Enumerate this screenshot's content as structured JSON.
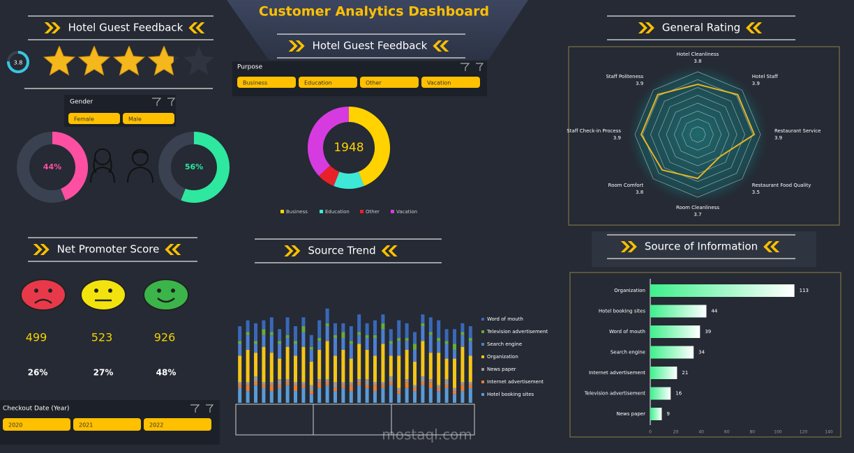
{
  "header": {
    "title": "Customer Analytics Dashboard"
  },
  "panels": {
    "feedback_left": "Hotel Guest Feedback",
    "feedback_center": "Hotel Guest Feedback",
    "general_rating": "General Rating",
    "nps": "Net Promoter Score",
    "source_trend": "Source Trend",
    "source_info": "Source of Information"
  },
  "rating": {
    "value": 3.8,
    "max": 5
  },
  "slicers": [
    {
      "title": "Gender",
      "options": [
        "Female",
        "Male"
      ]
    },
    {
      "title": "Purpose",
      "options": [
        "Business",
        "Education",
        "Other",
        "Vacation"
      ]
    },
    {
      "title": "Checkout Date (Year)",
      "options": [
        "2020",
        "2021",
        "2022"
      ]
    }
  ],
  "chart_data": [
    {
      "type": "gauge",
      "values": [
        44,
        56
      ],
      "value_labels": [
        "44%",
        "56%"
      ],
      "colors": [
        "#ff4fa3",
        "#2ee8a0"
      ],
      "ylim": [
        0,
        100
      ]
    },
    {
      "type": "donut",
      "total": 1948,
      "categories": [
        "Business",
        "Education",
        "Other",
        "Vacation"
      ],
      "values": [
        857,
        234,
        136,
        721
      ],
      "colors": [
        "#ffd200",
        "#3ee8d6",
        "#e8202a",
        "#d63be0"
      ]
    },
    {
      "type": "nps",
      "values": [
        499,
        523,
        926
      ],
      "shares": [
        26,
        27,
        48
      ],
      "share_labels": [
        "26%",
        "27%",
        "48%"
      ],
      "colors": [
        "#e8394a",
        "#f2e30f",
        "#3bb54a"
      ]
    },
    {
      "type": "stacked_bar",
      "categories": [
        null,
        null,
        null,
        null,
        null,
        null,
        null,
        null,
        null,
        null,
        null,
        null,
        null,
        null,
        null,
        null,
        null,
        null,
        null,
        null,
        null,
        null,
        null,
        null,
        null,
        null,
        null,
        null,
        null,
        null
      ],
      "ylim": [
        0,
        35
      ],
      "series": [
        {
          "name": "Word of mouth",
          "color": "#3a68b8",
          "values": [
            5,
            4,
            6,
            3,
            5,
            4,
            6,
            5,
            3,
            4,
            6,
            5,
            4,
            3,
            5,
            6,
            4,
            5,
            3,
            4,
            6,
            5,
            4,
            3,
            5,
            6,
            4,
            5,
            3,
            4
          ]
        },
        {
          "name": "Television advertisement",
          "color": "#6aaa3a",
          "values": [
            1,
            1,
            1,
            2,
            1,
            1,
            1,
            1,
            2,
            1,
            1,
            1,
            1,
            2,
            1,
            1,
            1,
            1,
            2,
            1,
            1,
            1,
            2,
            1,
            1,
            1,
            1,
            2,
            1,
            1
          ]
        },
        {
          "name": "Search engine",
          "color": "#4d7fd0",
          "values": [
            4,
            5,
            3,
            4,
            6,
            5,
            3,
            4,
            5,
            4,
            3,
            5,
            6,
            4,
            5,
            3,
            4,
            6,
            5,
            4,
            5,
            3,
            4,
            5,
            6,
            4,
            5,
            3,
            4,
            5
          ]
        },
        {
          "name": "Organization",
          "color": "#f5c518",
          "values": [
            9,
            11,
            8,
            12,
            10,
            7,
            11,
            9,
            12,
            8,
            10,
            13,
            9,
            11,
            8,
            12,
            10,
            9,
            13,
            7,
            11,
            10,
            8,
            12,
            9,
            11,
            7,
            10,
            12,
            9
          ]
        },
        {
          "name": "News paper",
          "color": "#9a9a9a",
          "values": [
            1,
            1,
            2,
            1,
            1,
            2,
            1,
            1,
            1,
            2,
            1,
            1,
            2,
            1,
            1,
            1,
            2,
            1,
            1,
            2,
            1,
            1,
            1,
            2,
            1,
            1,
            2,
            1,
            1,
            1
          ]
        },
        {
          "name": "Internet advertisement",
          "color": "#ed7d31",
          "values": [
            1,
            2,
            1,
            1,
            2,
            1,
            1,
            2,
            1,
            1,
            2,
            1,
            1,
            1,
            2,
            1,
            1,
            2,
            1,
            1,
            1,
            2,
            1,
            1,
            2,
            1,
            1,
            1,
            2,
            1
          ]
        },
        {
          "name": "Hotel booking sites",
          "color": "#5b9bd5",
          "values": [
            5,
            4,
            6,
            5,
            4,
            5,
            6,
            4,
            5,
            3,
            5,
            6,
            4,
            5,
            4,
            6,
            5,
            4,
            5,
            6,
            3,
            5,
            4,
            6,
            5,
            4,
            5,
            3,
            4,
            5
          ]
        }
      ]
    },
    {
      "type": "radar",
      "categories": [
        "Hotel Cleanliness",
        "Hotel Staff",
        "Restaurant Service",
        "Restaurant Food Quality",
        "Room Cleanliness",
        "Room Comfort",
        "Staff Check-in Process",
        "Staff Politeness"
      ],
      "values": [
        3.8,
        3.9,
        3.9,
        3.5,
        3.7,
        3.8,
        3.9,
        3.9
      ],
      "rlim": [
        3,
        4
      ],
      "color": "#e6b422"
    },
    {
      "type": "hbar",
      "categories": [
        "Organization",
        "Hotel booking sites",
        "Word of mouth",
        "Search engine",
        "Internet advertisement",
        "Television advertisement",
        "News paper"
      ],
      "values": [
        113,
        44,
        39,
        34,
        21,
        16,
        9
      ],
      "xlim": [
        0,
        140
      ],
      "xticks": [
        0,
        20,
        40,
        60,
        80,
        100,
        120,
        140
      ]
    }
  ],
  "watermark": "mostaql.com"
}
